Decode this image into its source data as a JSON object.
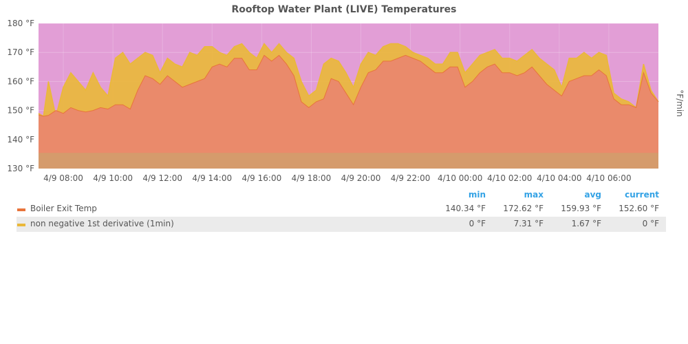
{
  "chart_data": {
    "type": "area",
    "title": "Rooftop Water Plant (LIVE) Temperatures",
    "ylabel": "",
    "y2label": "°F/min",
    "ylim": [
      130,
      180
    ],
    "yticks": [
      "130 °F",
      "140 °F",
      "150 °F",
      "160 °F",
      "170 °F",
      "180 °F"
    ],
    "xlim": [
      "4/9 07:00",
      "4/10 08:40"
    ],
    "xticks": [
      "4/9 08:00",
      "4/9 10:00",
      "4/9 12:00",
      "4/9 14:00",
      "4/9 16:00",
      "4/9 18:00",
      "4/9 20:00",
      "4/9 22:00",
      "4/10 00:00",
      "4/10 02:00",
      "4/10 04:00",
      "4/10 06:00"
    ],
    "grid": true,
    "background_band": {
      "color": "#e29ed6"
    },
    "baseline_band": {
      "y_range": [
        130,
        135.4
      ],
      "color": "#d59b6c"
    },
    "series": [
      {
        "name": "Boiler Exit Temp",
        "color": "#ea8a6b",
        "line_color": "#e8743b",
        "x_hours": [
          0,
          0.2,
          0.4,
          0.7,
          1,
          1.3,
          1.6,
          1.9,
          2.2,
          2.5,
          2.8,
          3.1,
          3.4,
          3.7,
          4,
          4.3,
          4.6,
          4.9,
          5.2,
          5.5,
          5.8,
          6.1,
          6.4,
          6.7,
          7,
          7.3,
          7.6,
          7.9,
          8.2,
          8.5,
          8.8,
          9.1,
          9.4,
          9.7,
          10,
          10.3,
          10.6,
          10.9,
          11.2,
          11.5,
          11.8,
          12.1,
          12.4,
          12.7,
          13,
          13.3,
          13.6,
          13.9,
          14.2,
          14.5,
          14.8,
          15.1,
          15.4,
          15.7,
          16,
          16.3,
          16.6,
          16.9,
          17.2,
          17.5,
          17.8,
          18.1,
          18.4,
          18.7,
          19,
          19.3,
          19.6,
          19.9,
          20.2,
          20.5,
          20.8,
          21.1,
          21.4,
          21.7,
          22,
          22.3,
          22.6,
          22.9,
          23.2,
          23.5,
          23.8,
          24.1,
          24.4,
          24.7,
          25
        ],
        "values": [
          148.5,
          148,
          148.3,
          150,
          149,
          151,
          150,
          149.5,
          150,
          151,
          150.5,
          152,
          152,
          150.5,
          157,
          162,
          161,
          159,
          162,
          160,
          158,
          159,
          160,
          161,
          165,
          166,
          165,
          168,
          168,
          164,
          164,
          169,
          167,
          169,
          166,
          162,
          153,
          151,
          153,
          154,
          161,
          160,
          156,
          152,
          158,
          163,
          164,
          167,
          167,
          168,
          169,
          168,
          167,
          165,
          163,
          163,
          165,
          165,
          158,
          160,
          163,
          165,
          166,
          163,
          163,
          162,
          163,
          165,
          162,
          159,
          157,
          155,
          160,
          161,
          162,
          162,
          164,
          162,
          154,
          152,
          152,
          151,
          163,
          156,
          153
        ]
      },
      {
        "name": "non negative 1st derivative (1min)",
        "color": "#eab839",
        "values_note": "spiky derivative overlay",
        "x_hours": [
          0,
          0.2,
          0.4,
          0.7,
          1,
          1.3,
          1.6,
          1.9,
          2.2,
          2.5,
          2.8,
          3.1,
          3.4,
          3.7,
          4,
          4.3,
          4.6,
          4.9,
          5.2,
          5.5,
          5.8,
          6.1,
          6.4,
          6.7,
          7,
          7.3,
          7.6,
          7.9,
          8.2,
          8.5,
          8.8,
          9.1,
          9.4,
          9.7,
          10,
          10.3,
          10.6,
          10.9,
          11.2,
          11.5,
          11.8,
          12.1,
          12.4,
          12.7,
          13,
          13.3,
          13.6,
          13.9,
          14.2,
          14.5,
          14.8,
          15.1,
          15.4,
          15.7,
          16,
          16.3,
          16.6,
          16.9,
          17.2,
          17.5,
          17.8,
          18.1,
          18.4,
          18.7,
          19,
          19.3,
          19.6,
          19.9,
          20.2,
          20.5,
          20.8,
          21.1,
          21.4,
          21.7,
          22,
          22.3,
          22.6,
          22.9,
          23.2,
          23.5,
          23.8,
          24.1,
          24.4,
          24.7,
          25
        ],
        "values": [
          149,
          148,
          160,
          148,
          158,
          163,
          160,
          157,
          163,
          158,
          155,
          168,
          170,
          166,
          168,
          170,
          169,
          163,
          168,
          166,
          165,
          170,
          169,
          172,
          172,
          170,
          169,
          172,
          173,
          170,
          168,
          173,
          170,
          173,
          170,
          168,
          160,
          155,
          157,
          166,
          168,
          167,
          163,
          158,
          166,
          170,
          169,
          172,
          173,
          173,
          172,
          170,
          169,
          168,
          166,
          166,
          170,
          170,
          163,
          166,
          169,
          170,
          171,
          168,
          168,
          167,
          169,
          171,
          168,
          166,
          164,
          158,
          168,
          168,
          170,
          168,
          170,
          169,
          156,
          154,
          153,
          151,
          166,
          157,
          153
        ]
      }
    ],
    "legend": {
      "placement": "bottom",
      "columns": [
        "min",
        "max",
        "avg",
        "current"
      ],
      "rows": [
        {
          "name": "Boiler Exit Temp",
          "color": "#e8743b",
          "min": "140.34 °F",
          "max": "172.62 °F",
          "avg": "159.93 °F",
          "current": "152.60 °F"
        },
        {
          "name": "non negative 1st derivative (1min)",
          "color": "#eab839",
          "min": "0 °F",
          "max": "7.31 °F",
          "avg": "1.67 °F",
          "current": "0 °F"
        }
      ]
    }
  }
}
